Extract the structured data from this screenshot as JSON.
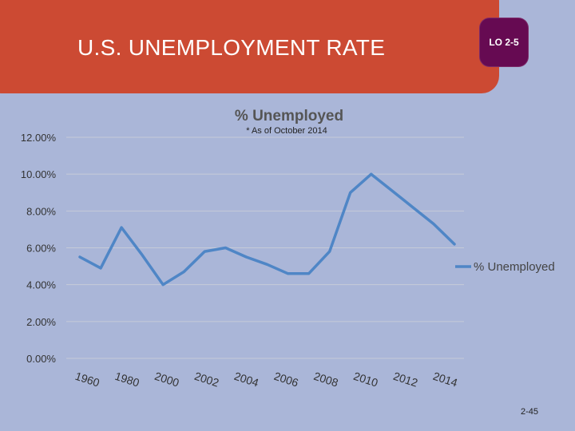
{
  "slide": {
    "title": "U.S. UNEMPLOYMENT RATE",
    "lo_badge": "LO 2-5",
    "page_number": "2-45"
  },
  "colors": {
    "background": "#aab6d8",
    "banner": "#cc4a33",
    "badge": "#660a52",
    "series_line": "#4f86c6",
    "gridline": "#c6cbd8"
  },
  "chart_data": {
    "type": "line",
    "title": "% Unemployed",
    "annotation": "* As of October 2014",
    "ylim": [
      0,
      12
    ],
    "y_ticks": [
      "0.00%",
      "2.00%",
      "4.00%",
      "6.00%",
      "8.00%",
      "10.00%",
      "12.00%"
    ],
    "x_ticks": [
      "1960",
      "1980",
      "2000",
      "2002",
      "2004",
      "2006",
      "2008",
      "2010",
      "2012",
      "2014"
    ],
    "grid": "horizontal",
    "legend_position": "right",
    "series": [
      {
        "name": "% Unemployed",
        "values": [
          5.5,
          4.9,
          7.1,
          5.6,
          4.0,
          4.7,
          5.8,
          6.0,
          5.5,
          5.1,
          4.6,
          4.6,
          5.8,
          9.0,
          10.0,
          9.1,
          8.2,
          7.3,
          6.2
        ]
      }
    ]
  }
}
